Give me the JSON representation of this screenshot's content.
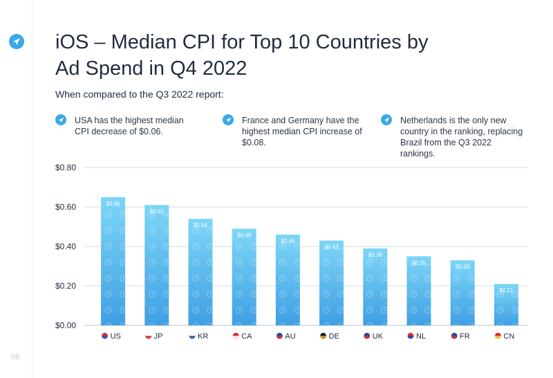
{
  "page": {
    "title": "iOS – Median CPI for Top 10 Countries by Ad Spend in Q4 2022",
    "subtitle": "When compared to the Q3 2022 report:",
    "page_number": "08"
  },
  "notes": [
    {
      "icon": "plane-icon",
      "text": "USA has the highest median CPI decrease of $0.06."
    },
    {
      "icon": "plane-icon",
      "text": "France and Germany have the highest median CPI increase of $0.08."
    },
    {
      "icon": "plane-icon",
      "text": "Netherlands is the only new country in the ranking, replacing Brazil from the Q3 2022 rankings."
    }
  ],
  "colors": {
    "accent": "#3aa9e6",
    "bar_top": "#7dd6f7",
    "bar_bottom": "#3f9fe3",
    "grid": "#d6dbe2",
    "text": "#1f2b3d"
  },
  "chart_data": {
    "type": "bar",
    "title": "iOS – Median CPI for Top 10 Countries by Ad Spend in Q4 2022",
    "xlabel": "",
    "ylabel": "",
    "ylim": [
      0,
      0.8
    ],
    "yticks": [
      0,
      0.2,
      0.4,
      0.6,
      0.8
    ],
    "ytick_labels": [
      "$0.00",
      "$0.20",
      "$0.40",
      "$0.60",
      "$0.80"
    ],
    "grid": true,
    "categories": [
      "US",
      "JP",
      "KR",
      "CA",
      "AU",
      "DE",
      "UK",
      "NL",
      "FR",
      "CN"
    ],
    "values": [
      0.65,
      0.61,
      0.54,
      0.49,
      0.46,
      0.43,
      0.39,
      0.35,
      0.33,
      0.21
    ],
    "value_labels": [
      "$0.65",
      "$0.61",
      "$0.54",
      "$0.49",
      "$0.46",
      "$0.43",
      "$0.39",
      "$0.35",
      "$0.33",
      "$0.21"
    ],
    "flag_colors": [
      [
        "#d22f3a",
        "#3357a8"
      ],
      [
        "#ffffff",
        "#d6243a"
      ],
      [
        "#ffffff",
        "#2a4c9a"
      ],
      [
        "#e02a2a",
        "#ffffff"
      ],
      [
        "#2a4c9a",
        "#d22f3a"
      ],
      [
        "#1a1a1a",
        "#e0a81c"
      ],
      [
        "#2a4c9a",
        "#d22f3a"
      ],
      [
        "#d22f3a",
        "#2a4c9a"
      ],
      [
        "#2a4c9a",
        "#d22f3a"
      ],
      [
        "#e0232a",
        "#f5d43a"
      ]
    ]
  }
}
